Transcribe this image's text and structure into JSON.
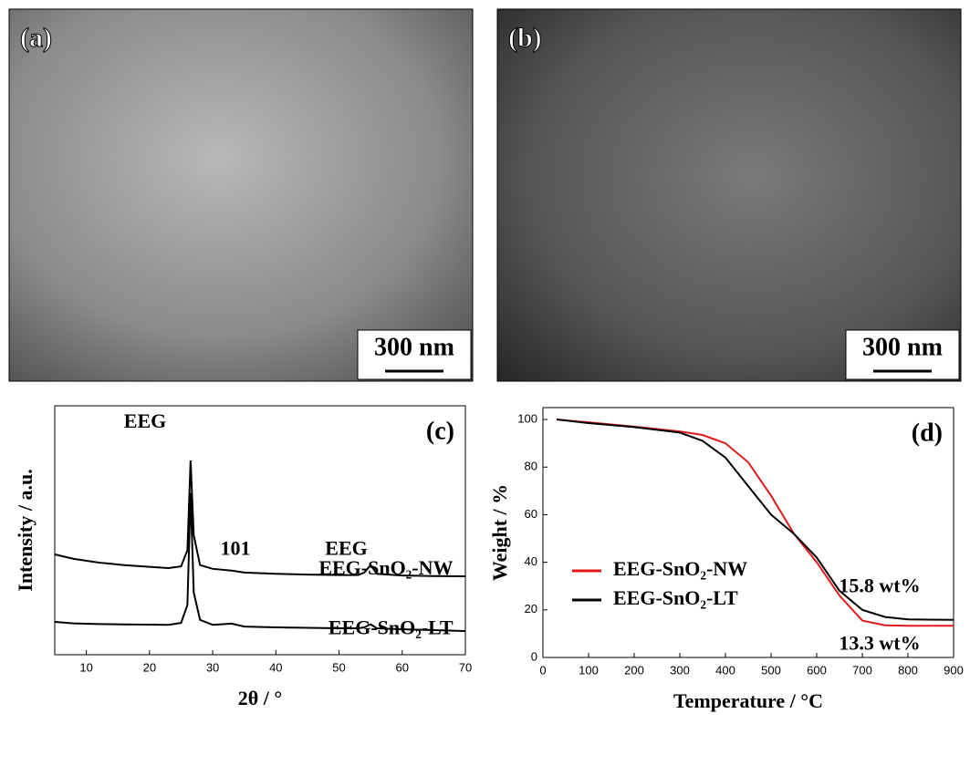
{
  "panels": [
    {
      "label": "(a)",
      "scale_bar": "300 nm"
    },
    {
      "label": "(b)",
      "scale_bar": "300 nm"
    }
  ],
  "chart_data": [
    {
      "type": "line",
      "panel_label": "(c)",
      "x_label": "2θ / °",
      "y_label": "Intensity / a.u.",
      "x": [
        5,
        8,
        12,
        16,
        20,
        23,
        25,
        26,
        26.5,
        27,
        28,
        30,
        33,
        35,
        40,
        45,
        50,
        53,
        54,
        55,
        56,
        60,
        65,
        70
      ],
      "series": [
        {
          "name": "EEG-SnO₂-NW",
          "color": "#000000",
          "values": [
            40.3,
            38.5,
            37,
            36,
            35.3,
            34.8,
            35.5,
            42,
            78,
            48,
            36,
            34.5,
            33.8,
            33,
            32.5,
            32.2,
            32,
            32,
            33,
            36,
            32.5,
            31.8,
            31.6,
            31.5
          ]
        },
        {
          "name": "EEG-SnO₂-LT",
          "color": "#000000",
          "values": [
            13.2,
            12.6,
            12.3,
            12.2,
            12.1,
            12,
            12.8,
            20,
            65,
            25,
            14,
            12,
            12.5,
            11.3,
            11,
            10.8,
            10.6,
            10.6,
            11,
            12.2,
            10.6,
            10.2,
            9.9,
            9.5
          ]
        }
      ],
      "annotations": [
        "EEG",
        "101",
        "EEG"
      ],
      "xlim": [
        5,
        70
      ],
      "xticks": [
        10,
        20,
        30,
        40,
        50,
        60,
        70
      ],
      "ylim": [
        0,
        100
      ]
    },
    {
      "type": "line",
      "panel_label": "(d)",
      "x_label": "Temperature / °C",
      "y_label": "Weight / %",
      "x": [
        30,
        100,
        200,
        300,
        350,
        400,
        450,
        500,
        550,
        600,
        650,
        700,
        750,
        800,
        900
      ],
      "series": [
        {
          "name": "EEG-SnO₂-NW",
          "color": "#e31a1c",
          "values": [
            100,
            98.8,
            97,
            95,
            93.5,
            90,
            82,
            68,
            52,
            40,
            26,
            15.5,
            13.5,
            13.3,
            13.3
          ]
        },
        {
          "name": "EEG-SnO₂-LT",
          "color": "#000000",
          "values": [
            100,
            98.5,
            96.8,
            94.5,
            91,
            84,
            72,
            60,
            52,
            42,
            28,
            20,
            17,
            16,
            15.8
          ]
        }
      ],
      "annotations": [
        "15.8 wt%",
        "13.3 wt%"
      ],
      "legend": "lower left",
      "xlim": [
        0,
        900
      ],
      "xticks": [
        0,
        100,
        200,
        300,
        400,
        500,
        600,
        700,
        800,
        900
      ],
      "ylim": [
        0,
        105
      ],
      "yticks": [
        0,
        20,
        40,
        60,
        80,
        100
      ]
    }
  ]
}
